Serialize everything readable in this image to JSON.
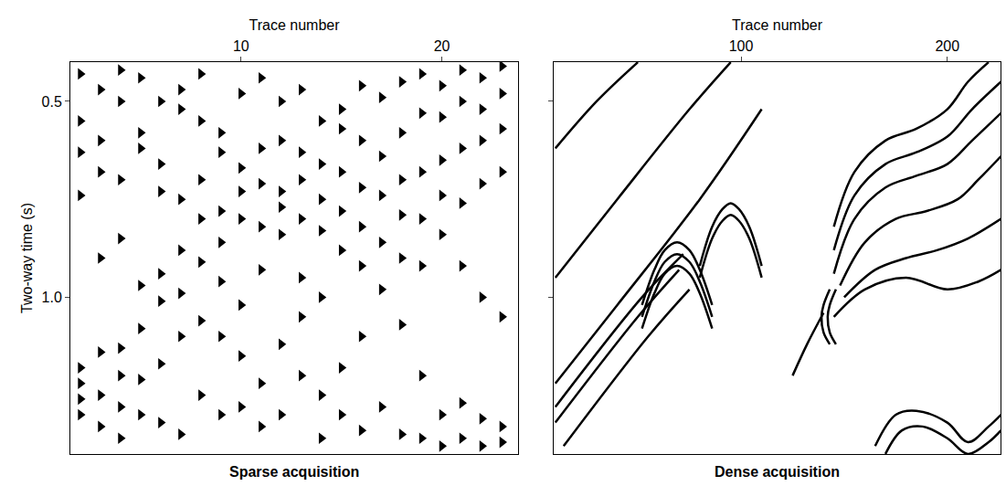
{
  "chart_data": [
    {
      "type": "scatter",
      "title": "Sparse acquisition",
      "x_label": "Trace number",
      "y_label": "Two-way time (s)",
      "xlim": [
        1.5,
        23.8
      ],
      "ylim": [
        1.4,
        0.4
      ],
      "xticks": [
        10,
        20
      ],
      "yticks": [
        0.5,
        {
          "value": 1,
          "label": "1.0"
        }
      ],
      "color": "#000000",
      "marker": "triangle-right",
      "x": [
        2,
        2,
        2,
        2,
        2,
        2,
        2,
        2,
        3,
        3,
        3,
        3,
        3,
        3,
        3,
        4,
        4,
        4,
        4,
        4,
        4,
        4,
        4,
        5,
        5,
        5,
        5,
        5,
        5,
        5,
        6,
        6,
        6,
        6,
        6,
        6,
        6,
        7,
        7,
        7,
        7,
        7,
        7,
        7,
        8,
        8,
        8,
        8,
        8,
        8,
        8,
        9,
        9,
        9,
        9,
        9,
        9,
        9,
        10,
        10,
        10,
        10,
        10,
        10,
        10,
        11,
        11,
        11,
        11,
        11,
        11,
        11,
        12,
        12,
        12,
        12,
        12,
        12,
        12,
        13,
        13,
        13,
        13,
        13,
        13,
        13,
        14,
        14,
        14,
        14,
        14,
        14,
        14,
        15,
        15,
        15,
        15,
        15,
        15,
        15,
        16,
        16,
        16,
        16,
        16,
        16,
        16,
        17,
        17,
        17,
        17,
        17,
        17,
        18,
        18,
        18,
        18,
        18,
        18,
        18,
        19,
        19,
        19,
        19,
        19,
        19,
        19,
        20,
        20,
        20,
        20,
        20,
        20,
        20,
        21,
        21,
        21,
        21,
        21,
        21,
        21,
        22,
        22,
        22,
        22,
        22,
        22,
        22,
        23,
        23,
        23,
        23,
        23,
        23,
        23
      ],
      "values": [
        0.43,
        0.55,
        0.63,
        0.74,
        1.18,
        1.22,
        1.26,
        1.3,
        0.47,
        0.6,
        0.68,
        0.9,
        1.14,
        1.25,
        1.33,
        0.42,
        0.5,
        0.7,
        0.85,
        1.13,
        1.2,
        1.28,
        1.36,
        0.44,
        0.58,
        0.62,
        0.97,
        1.08,
        1.21,
        1.3,
        0.5,
        0.66,
        0.73,
        0.94,
        1.01,
        1.17,
        1.32,
        0.47,
        0.52,
        0.75,
        0.88,
        0.99,
        1.1,
        1.35,
        0.43,
        0.55,
        0.7,
        0.8,
        0.91,
        1.06,
        1.25,
        0.58,
        0.63,
        0.78,
        0.86,
        0.96,
        1.1,
        1.3,
        0.48,
        0.67,
        0.73,
        0.8,
        1.02,
        1.15,
        1.28,
        0.44,
        0.62,
        0.71,
        0.82,
        0.93,
        1.22,
        1.33,
        0.5,
        0.6,
        0.73,
        0.77,
        0.84,
        1.12,
        1.3,
        0.47,
        0.63,
        0.7,
        0.8,
        0.95,
        1.05,
        1.2,
        0.55,
        0.66,
        0.75,
        0.83,
        1.0,
        1.25,
        1.36,
        0.52,
        0.57,
        0.68,
        0.78,
        0.88,
        1.18,
        1.3,
        0.46,
        0.6,
        0.72,
        0.82,
        0.92,
        1.1,
        1.34,
        0.49,
        0.64,
        0.74,
        0.86,
        0.98,
        1.28,
        0.45,
        0.58,
        0.7,
        0.79,
        0.9,
        1.07,
        1.35,
        0.43,
        0.53,
        0.68,
        0.8,
        0.92,
        1.2,
        1.36,
        0.46,
        0.54,
        0.65,
        0.74,
        0.84,
        1.3,
        1.38,
        0.42,
        0.5,
        0.62,
        0.76,
        0.92,
        1.27,
        1.36,
        0.44,
        0.52,
        0.6,
        0.71,
        1.0,
        1.31,
        1.38,
        0.41,
        0.48,
        0.57,
        0.68,
        1.05,
        1.33,
        1.37
      ]
    },
    {
      "type": "line",
      "title": "Dense acquisition",
      "x_label": "Trace number",
      "xlim": [
        9,
        226
      ],
      "ylim": [
        1.4,
        0.4
      ],
      "xticks": [
        100,
        200
      ],
      "yticks": [
        0.5,
        {
          "value": 1,
          "label": "1.0"
        }
      ],
      "tick_labels": "x",
      "color": "#000000",
      "series": [
        {
          "x": [
            10,
            30,
            50
          ],
          "values": [
            0.62,
            0.5,
            0.4
          ]
        },
        {
          "x": [
            10,
            40,
            75,
            95
          ],
          "values": [
            0.95,
            0.75,
            0.52,
            0.4
          ]
        },
        {
          "x": [
            10,
            40,
            80,
            110
          ],
          "values": [
            1.22,
            1.02,
            0.75,
            0.52
          ]
        },
        {
          "x": [
            10,
            50,
            70
          ],
          "values": [
            1.32,
            1.05,
            0.93
          ]
        },
        {
          "x": [
            14,
            55,
            75
          ],
          "values": [
            1.38,
            1.1,
            0.98
          ]
        },
        {
          "x": [
            10,
            52,
            72
          ],
          "values": [
            1.28,
            1.0,
            0.89
          ]
        },
        {
          "x": [
            52,
            58,
            63,
            69,
            75,
            80,
            86
          ],
          "values": [
            1.02,
            0.93,
            0.88,
            0.86,
            0.88,
            0.93,
            1.02
          ]
        },
        {
          "x": [
            52,
            58,
            63,
            69,
            75,
            80,
            86
          ],
          "values": [
            1.05,
            0.96,
            0.91,
            0.89,
            0.91,
            0.96,
            1.05
          ]
        },
        {
          "x": [
            52,
            58,
            63,
            69,
            75,
            80,
            86
          ],
          "values": [
            1.08,
            0.99,
            0.94,
            0.92,
            0.94,
            0.99,
            1.08
          ]
        },
        {
          "x": [
            80,
            86,
            91,
            95,
            99,
            104,
            110
          ],
          "values": [
            0.92,
            0.82,
            0.775,
            0.76,
            0.775,
            0.82,
            0.92
          ]
        },
        {
          "x": [
            80,
            86,
            91,
            95,
            99,
            104,
            110
          ],
          "values": [
            0.95,
            0.85,
            0.805,
            0.79,
            0.805,
            0.85,
            0.95
          ]
        },
        {
          "x": [
            125,
            132,
            140
          ],
          "values": [
            1.2,
            1.12,
            1.04
          ]
        },
        {
          "x": [
            143,
            140,
            139,
            140,
            143
          ],
          "values": [
            0.98,
            1.02,
            1.05,
            1.09,
            1.12
          ]
        },
        {
          "x": [
            146,
            143,
            142,
            143,
            146
          ],
          "values": [
            0.98,
            1.02,
            1.05,
            1.09,
            1.12
          ]
        },
        {
          "x": [
            145,
            155,
            170,
            185,
            200,
            210,
            220
          ],
          "values": [
            0.82,
            0.68,
            0.6,
            0.57,
            0.52,
            0.45,
            0.4
          ]
        },
        {
          "x": [
            145,
            155,
            170,
            185,
            200,
            212,
            226
          ],
          "values": [
            0.88,
            0.74,
            0.66,
            0.63,
            0.59,
            0.52,
            0.45
          ]
        },
        {
          "x": [
            145,
            155,
            170,
            185,
            200,
            212,
            226
          ],
          "values": [
            0.94,
            0.8,
            0.72,
            0.69,
            0.66,
            0.6,
            0.53
          ]
        },
        {
          "x": [
            148,
            160,
            175,
            190,
            205,
            215,
            226
          ],
          "values": [
            0.97,
            0.86,
            0.8,
            0.78,
            0.75,
            0.7,
            0.64
          ]
        },
        {
          "x": [
            150,
            165,
            180,
            195,
            210,
            226
          ],
          "values": [
            1.0,
            0.93,
            0.9,
            0.88,
            0.85,
            0.8
          ]
        },
        {
          "x": [
            145,
            160,
            180,
            200,
            215,
            226
          ],
          "values": [
            1.05,
            0.98,
            0.95,
            0.98,
            0.96,
            0.93
          ]
        },
        {
          "x": [
            165,
            175,
            185,
            200,
            210,
            220,
            226
          ],
          "values": [
            1.38,
            1.3,
            1.29,
            1.32,
            1.37,
            1.33,
            1.3
          ]
        },
        {
          "x": [
            170,
            178,
            188,
            200,
            210,
            220,
            226
          ],
          "values": [
            1.4,
            1.34,
            1.33,
            1.36,
            1.4,
            1.37,
            1.34
          ]
        }
      ]
    }
  ]
}
